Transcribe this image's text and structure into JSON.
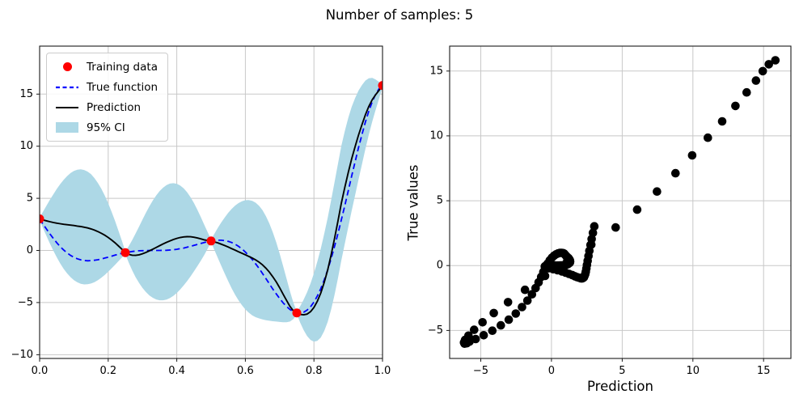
{
  "figure": {
    "title": "Number of samples: 5",
    "background": "#ffffff",
    "grid_color": "#c8c8c8",
    "spine_color": "#1a1a1a"
  },
  "legend": {
    "items": [
      {
        "label": "Training data",
        "marker": "red-dot",
        "color": "#ff0000"
      },
      {
        "label": "True function",
        "marker": "dashed-line",
        "color": "#0000ff"
      },
      {
        "label": "Prediction",
        "marker": "solid-line",
        "color": "#000000"
      },
      {
        "label": "95% CI",
        "marker": "patch",
        "color": "#add8e6"
      }
    ]
  },
  "chart_data": [
    {
      "type": "line",
      "title": "",
      "xlabel": "",
      "ylabel": "",
      "xlim": [
        0,
        1
      ],
      "ylim": [
        -10.36,
        19.6
      ],
      "grid": true,
      "legend_position": "upper left",
      "xticks": {
        "values": [
          0,
          0.2,
          0.4,
          0.6,
          0.8,
          1.0
        ],
        "labels": [
          "0.0",
          "0.2",
          "0.4",
          "0.6",
          "0.8",
          "1.0"
        ]
      },
      "yticks": {
        "values": [
          -10,
          -5,
          0,
          5,
          10,
          15
        ],
        "labels": [
          "−10",
          "−5",
          "0",
          "5",
          "10",
          "15"
        ]
      },
      "x": [
        0,
        0.01,
        0.02,
        0.03,
        0.04,
        0.05,
        0.06,
        0.07,
        0.08,
        0.09,
        0.1,
        0.11,
        0.12,
        0.13,
        0.14,
        0.15,
        0.16,
        0.17,
        0.18,
        0.19,
        0.2,
        0.21,
        0.22,
        0.23,
        0.24,
        0.25,
        0.26,
        0.27,
        0.28,
        0.29,
        0.3,
        0.31,
        0.32,
        0.33,
        0.34,
        0.35,
        0.36,
        0.37,
        0.38,
        0.39,
        0.4,
        0.41,
        0.42,
        0.43,
        0.44,
        0.45,
        0.46,
        0.47,
        0.48,
        0.49,
        0.5,
        0.51,
        0.52,
        0.53,
        0.54,
        0.55,
        0.56,
        0.57,
        0.58,
        0.59,
        0.6,
        0.61,
        0.62,
        0.63,
        0.64,
        0.65,
        0.66,
        0.67,
        0.68,
        0.69,
        0.7,
        0.71,
        0.72,
        0.73,
        0.74,
        0.75,
        0.76,
        0.77,
        0.78,
        0.79,
        0.8,
        0.81,
        0.82,
        0.83,
        0.84,
        0.85,
        0.86,
        0.87,
        0.88,
        0.89,
        0.9,
        0.91,
        0.92,
        0.93,
        0.94,
        0.95,
        0.96,
        0.97,
        0.98,
        0.99,
        1.0
      ],
      "series": [
        {
          "name": "Training data",
          "type": "scatter",
          "color": "#ff0000",
          "x": [
            0,
            0.25,
            0.5,
            0.75,
            1.0
          ],
          "y": [
            3.03,
            -0.21,
            0.91,
            -5.99,
            15.83
          ]
        },
        {
          "name": "True function",
          "type": "line",
          "style": "dashed",
          "color": "#0000ff",
          "y": [
            3.03,
            2.53,
            2.05,
            1.59,
            1.14,
            0.74,
            0.37,
            0.05,
            -0.23,
            -0.47,
            -0.66,
            -0.8,
            -0.9,
            -0.96,
            -0.99,
            -0.98,
            -0.94,
            -0.89,
            -0.82,
            -0.73,
            -0.64,
            -0.55,
            -0.45,
            -0.36,
            -0.28,
            -0.21,
            -0.15,
            -0.1,
            -0.06,
            -0.03,
            -0.02,
            -0.01,
            0,
            0,
            0,
            0,
            0.01,
            0.02,
            0.04,
            0.07,
            0.11,
            0.17,
            0.23,
            0.31,
            0.39,
            0.48,
            0.58,
            0.67,
            0.76,
            0.84,
            0.91,
            0.96,
            0.98,
            0.98,
            0.94,
            0.87,
            0.76,
            0.6,
            0.4,
            0.15,
            -0.15,
            -0.49,
            -0.87,
            -1.29,
            -1.73,
            -2.21,
            -2.7,
            -3.2,
            -3.7,
            -4.17,
            -4.61,
            -5.02,
            -5.37,
            -5.66,
            -5.87,
            -5.99,
            -6.02,
            -5.93,
            -5.73,
            -5.4,
            -4.95,
            -4.37,
            -3.66,
            -2.82,
            -1.87,
            -0.8,
            0.37,
            1.62,
            2.94,
            4.31,
            5.71,
            7.12,
            8.5,
            9.86,
            11.12,
            12.31,
            13.35,
            14.26,
            14.99,
            15.52,
            15.83
          ]
        },
        {
          "name": "Prediction",
          "type": "line",
          "style": "solid",
          "color": "#000000",
          "y": [
            3.03,
            2.93,
            2.84,
            2.76,
            2.68,
            2.62,
            2.56,
            2.51,
            2.47,
            2.43,
            2.39,
            2.34,
            2.29,
            2.23,
            2.16,
            2.07,
            1.95,
            1.81,
            1.65,
            1.46,
            1.24,
            1,
            0.73,
            0.43,
            0.12,
            -0.21,
            -0.38,
            -0.46,
            -0.47,
            -0.42,
            -0.32,
            -0.19,
            -0.04,
            0.12,
            0.29,
            0.46,
            0.62,
            0.78,
            0.92,
            1.05,
            1.16,
            1.24,
            1.3,
            1.32,
            1.31,
            1.27,
            1.2,
            1.11,
            1.02,
            0.96,
            0.91,
            0.82,
            0.72,
            0.6,
            0.47,
            0.33,
            0.18,
            0.03,
            -0.12,
            -0.27,
            -0.42,
            -0.57,
            -0.73,
            -0.91,
            -1.12,
            -1.38,
            -1.7,
            -2.08,
            -2.52,
            -3.02,
            -3.58,
            -4.18,
            -4.79,
            -5.36,
            -5.8,
            -5.99,
            -6.14,
            -6.18,
            -6.11,
            -5.87,
            -5.47,
            -4.87,
            -4.08,
            -3.07,
            -1.87,
            -0.45,
            1.12,
            2.82,
            4.54,
            6.06,
            7.46,
            8.77,
            9.95,
            11.06,
            12.07,
            13.01,
            13.8,
            14.46,
            14.94,
            15.37,
            15.83
          ]
        },
        {
          "name": "95% CI",
          "type": "band",
          "color": "#add8e6",
          "half_width": [
            0.12,
            0.79,
            1.46,
            2.1,
            2.71,
            3.28,
            3.8,
            4.27,
            4.66,
            4.99,
            5.24,
            5.4,
            5.49,
            5.49,
            5.4,
            5.24,
            4.99,
            4.66,
            4.27,
            3.8,
            3.28,
            2.71,
            2.1,
            1.46,
            0.79,
            0.12,
            0.79,
            1.46,
            2.1,
            2.71,
            3.28,
            3.8,
            4.27,
            4.66,
            4.99,
            5.24,
            5.4,
            5.49,
            5.49,
            5.4,
            5.24,
            4.99,
            4.66,
            4.27,
            3.8,
            3.28,
            2.71,
            2.1,
            1.46,
            0.79,
            0.12,
            0.79,
            1.46,
            2.1,
            2.71,
            3.28,
            3.8,
            4.27,
            4.66,
            4.99,
            5.24,
            5.4,
            5.49,
            5.49,
            5.4,
            5.24,
            4.99,
            4.66,
            4.27,
            3.8,
            3.28,
            2.71,
            2.1,
            1.46,
            0.79,
            0.12,
            0.79,
            1.46,
            2.1,
            2.71,
            3.28,
            3.8,
            4.27,
            4.66,
            4.99,
            5.24,
            5.4,
            5.49,
            5.49,
            5.4,
            5.24,
            4.99,
            4.66,
            4.27,
            3.8,
            3.28,
            2.71,
            2.1,
            1.46,
            0.79,
            0.12
          ]
        }
      ]
    },
    {
      "type": "scatter",
      "title": "",
      "xlabel": "Prediction",
      "ylabel": "True values",
      "xlim": [
        -7.2,
        16.93
      ],
      "ylim": [
        -7.16,
        16.92
      ],
      "grid": true,
      "color": "#000000",
      "xticks": {
        "values": [
          -5,
          0,
          5,
          10,
          15
        ],
        "labels": [
          "−5",
          "0",
          "5",
          "10",
          "15"
        ]
      },
      "yticks": {
        "values": [
          -5,
          0,
          5,
          10,
          15
        ],
        "labels": [
          "−5",
          "0",
          "5",
          "10",
          "15"
        ]
      },
      "x": [
        3.03,
        2.93,
        2.84,
        2.76,
        2.68,
        2.62,
        2.56,
        2.51,
        2.47,
        2.43,
        2.39,
        2.34,
        2.29,
        2.23,
        2.16,
        2.07,
        1.95,
        1.81,
        1.65,
        1.46,
        1.24,
        1,
        0.73,
        0.43,
        0.12,
        -0.21,
        -0.38,
        -0.46,
        -0.47,
        -0.42,
        -0.32,
        -0.19,
        -0.04,
        0.12,
        0.29,
        0.46,
        0.62,
        0.78,
        0.92,
        1.05,
        1.16,
        1.24,
        1.3,
        1.32,
        1.31,
        1.27,
        1.2,
        1.11,
        1.02,
        0.96,
        0.91,
        0.82,
        0.72,
        0.6,
        0.47,
        0.33,
        0.18,
        0.03,
        -0.12,
        -0.27,
        -0.42,
        -0.57,
        -0.73,
        -0.91,
        -1.12,
        -1.38,
        -1.7,
        -2.08,
        -2.52,
        -3.02,
        -3.58,
        -4.18,
        -4.79,
        -5.36,
        -5.8,
        -5.99,
        -6.14,
        -6.18,
        -6.11,
        -5.87,
        -5.47,
        -4.87,
        -4.08,
        -3.07,
        -1.87,
        -0.45,
        1.12,
        2.82,
        4.54,
        6.06,
        7.46,
        8.77,
        9.95,
        11.06,
        12.07,
        13.01,
        13.8,
        14.46,
        14.94,
        15.37,
        15.83
      ],
      "y": [
        3.03,
        2.53,
        2.05,
        1.59,
        1.14,
        0.74,
        0.37,
        0.05,
        -0.23,
        -0.47,
        -0.66,
        -0.8,
        -0.9,
        -0.96,
        -0.99,
        -0.98,
        -0.94,
        -0.89,
        -0.82,
        -0.73,
        -0.64,
        -0.55,
        -0.45,
        -0.36,
        -0.28,
        -0.21,
        -0.15,
        -0.1,
        -0.06,
        -0.03,
        -0.02,
        -0.01,
        0,
        0,
        0,
        0,
        0.01,
        0.02,
        0.04,
        0.07,
        0.11,
        0.17,
        0.23,
        0.31,
        0.39,
        0.48,
        0.58,
        0.67,
        0.76,
        0.84,
        0.91,
        0.96,
        0.98,
        0.98,
        0.94,
        0.87,
        0.76,
        0.6,
        0.4,
        0.15,
        -0.15,
        -0.49,
        -0.87,
        -1.29,
        -1.73,
        -2.21,
        -2.7,
        -3.2,
        -3.7,
        -4.17,
        -4.61,
        -5.02,
        -5.37,
        -5.66,
        -5.87,
        -5.99,
        -6.02,
        -5.93,
        -5.73,
        -5.4,
        -4.95,
        -4.37,
        -3.66,
        -2.82,
        -1.87,
        -0.8,
        0.37,
        1.62,
        2.94,
        4.31,
        5.71,
        7.12,
        8.5,
        9.86,
        11.12,
        12.31,
        13.35,
        14.26,
        14.99,
        15.52,
        15.83
      ]
    }
  ]
}
